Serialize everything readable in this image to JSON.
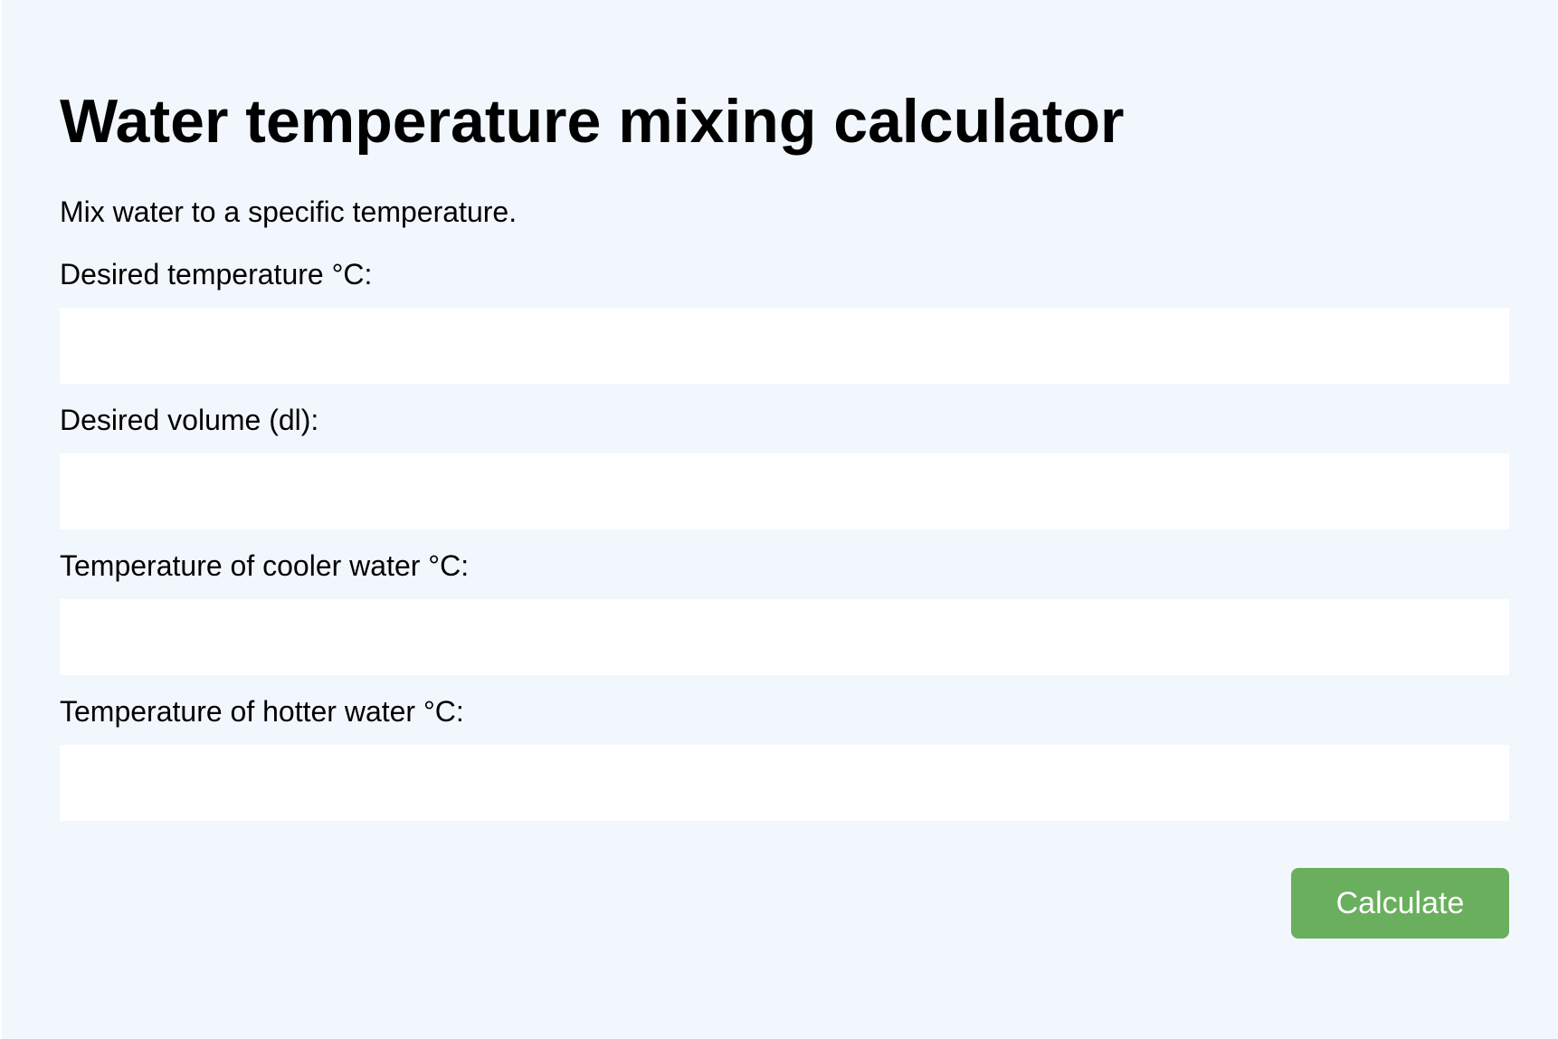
{
  "page": {
    "title": "Water temperature mixing calculator",
    "intro": "Mix water to a specific temperature."
  },
  "form": {
    "fields": [
      {
        "label": "Desired temperature °C:",
        "value": "",
        "placeholder": ""
      },
      {
        "label": "Desired volume (dl):",
        "value": "",
        "placeholder": ""
      },
      {
        "label": "Temperature of cooler water °C:",
        "value": "",
        "placeholder": ""
      },
      {
        "label": "Temperature of hotter water °C:",
        "value": "",
        "placeholder": ""
      }
    ],
    "submit_label": "Calculate"
  },
  "colors": {
    "background": "#f2f7fd",
    "input_background": "#ffffff",
    "button": "#6aaf5e",
    "button_text": "#ffffff"
  }
}
